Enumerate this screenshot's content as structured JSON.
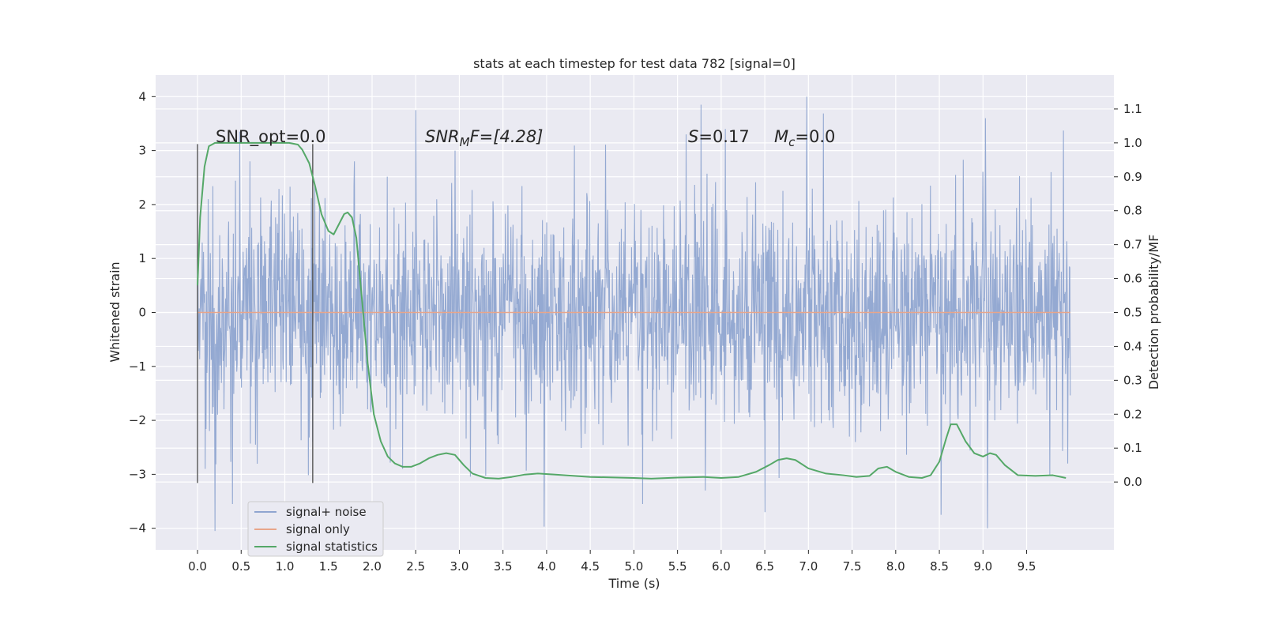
{
  "chart_data": {
    "type": "line",
    "title": "stats at each timestep for test data 782 [signal=0]",
    "xlabel": "Time (s)",
    "ylabel_left": "Whitened strain",
    "ylabel_right": "Detection probability/MF",
    "xlim": [
      -0.48,
      10.5
    ],
    "ylim_left": [
      -4.4,
      4.4
    ],
    "ylim_right": [
      -0.2,
      1.2
    ],
    "x_ticks": [
      "0.0",
      "0.5",
      "1.0",
      "1.5",
      "2.0",
      "2.5",
      "3.0",
      "3.5",
      "4.0",
      "4.5",
      "5.0",
      "5.5",
      "6.0",
      "6.5",
      "7.0",
      "7.5",
      "8.0",
      "8.5",
      "9.0",
      "9.5"
    ],
    "y_ticks_left": [
      "4",
      "3",
      "2",
      "1",
      "0",
      "−1",
      "−2",
      "−3",
      "−4"
    ],
    "y_ticks_right": [
      "1.1",
      "1.0",
      "0.9",
      "0.8",
      "0.7",
      "0.6",
      "0.5",
      "0.4",
      "0.3",
      "0.2",
      "0.1",
      "0.0"
    ],
    "grid": true,
    "legend_position": "lower-left",
    "annotations": {
      "snr_opt": "SNR_opt=0.0",
      "snr_mf_var": "SNR",
      "snr_mf_sub": "M",
      "snr_mf_rest": "F=[4.28]",
      "s_var": "S",
      "s_rest": "=0.17",
      "mc_var": "M",
      "mc_sub": "c",
      "mc_rest": "=0.0"
    },
    "event_markers": [
      0.0,
      1.32
    ],
    "series": [
      {
        "name": "signal+ noise",
        "axis": "left",
        "color": "#8fa5d0",
        "t_range": [
          0.0,
          10.0
        ],
        "envelope": {
          "typical_amplitude": 1.0,
          "peaks_high": [
            [
              0.12,
              2.1
            ],
            [
              0.6,
              2.8
            ],
            [
              1.8,
              2.8
            ],
            [
              2.5,
              3.75
            ],
            [
              2.95,
              3.0
            ],
            [
              5.6,
              3.3
            ],
            [
              5.77,
              3.85
            ],
            [
              6.05,
              3.4
            ],
            [
              6.98,
              4.0
            ],
            [
              9.03,
              3.6
            ],
            [
              9.78,
              2.6
            ]
          ],
          "peaks_low": [
            [
              0.09,
              -2.9
            ],
            [
              0.2,
              -4.05
            ],
            [
              0.4,
              -3.55
            ],
            [
              1.32,
              -2.4
            ],
            [
              2.35,
              -2.9
            ],
            [
              3.97,
              -3.97
            ],
            [
              5.1,
              -3.55
            ],
            [
              5.82,
              -3.3
            ],
            [
              6.5,
              -3.7
            ],
            [
              8.52,
              -3.75
            ],
            [
              9.05,
              -4.0
            ],
            [
              9.97,
              -2.8
            ]
          ]
        }
      },
      {
        "name": "signal only",
        "axis": "left",
        "color": "#e8a58a",
        "x": [
          0.0,
          10.0
        ],
        "y": [
          0.0,
          0.0
        ]
      },
      {
        "name": "signal statistics",
        "axis": "right",
        "color": "#55a868",
        "x": [
          0.0,
          0.03,
          0.08,
          0.13,
          0.2,
          0.3,
          0.5,
          0.7,
          0.9,
          1.05,
          1.15,
          1.2,
          1.28,
          1.35,
          1.42,
          1.5,
          1.56,
          1.62,
          1.68,
          1.72,
          1.77,
          1.82,
          1.88,
          1.95,
          2.02,
          2.1,
          2.18,
          2.26,
          2.35,
          2.45,
          2.55,
          2.65,
          2.75,
          2.85,
          2.95,
          3.05,
          3.15,
          3.3,
          3.45,
          3.6,
          3.75,
          3.9,
          4.1,
          4.5,
          5.0,
          5.2,
          5.5,
          5.8,
          6.0,
          6.2,
          6.4,
          6.55,
          6.65,
          6.75,
          6.85,
          7.0,
          7.2,
          7.4,
          7.55,
          7.7,
          7.8,
          7.9,
          8.0,
          8.15,
          8.3,
          8.4,
          8.5,
          8.58,
          8.63,
          8.7,
          8.8,
          8.9,
          9.0,
          9.08,
          9.15,
          9.25,
          9.4,
          9.6,
          9.8,
          9.95
        ],
        "y": [
          0.58,
          0.78,
          0.93,
          0.99,
          1.0,
          1.0,
          1.0,
          1.0,
          1.0,
          1.0,
          0.995,
          0.98,
          0.94,
          0.87,
          0.79,
          0.74,
          0.73,
          0.76,
          0.79,
          0.795,
          0.78,
          0.72,
          0.55,
          0.35,
          0.2,
          0.12,
          0.075,
          0.055,
          0.045,
          0.045,
          0.055,
          0.07,
          0.08,
          0.085,
          0.08,
          0.05,
          0.025,
          0.012,
          0.01,
          0.015,
          0.022,
          0.025,
          0.022,
          0.015,
          0.012,
          0.01,
          0.013,
          0.015,
          0.012,
          0.015,
          0.03,
          0.05,
          0.065,
          0.07,
          0.065,
          0.04,
          0.025,
          0.02,
          0.015,
          0.018,
          0.04,
          0.045,
          0.03,
          0.015,
          0.012,
          0.02,
          0.06,
          0.13,
          0.17,
          0.17,
          0.12,
          0.085,
          0.075,
          0.085,
          0.08,
          0.05,
          0.02,
          0.018,
          0.02,
          0.012
        ]
      }
    ]
  }
}
